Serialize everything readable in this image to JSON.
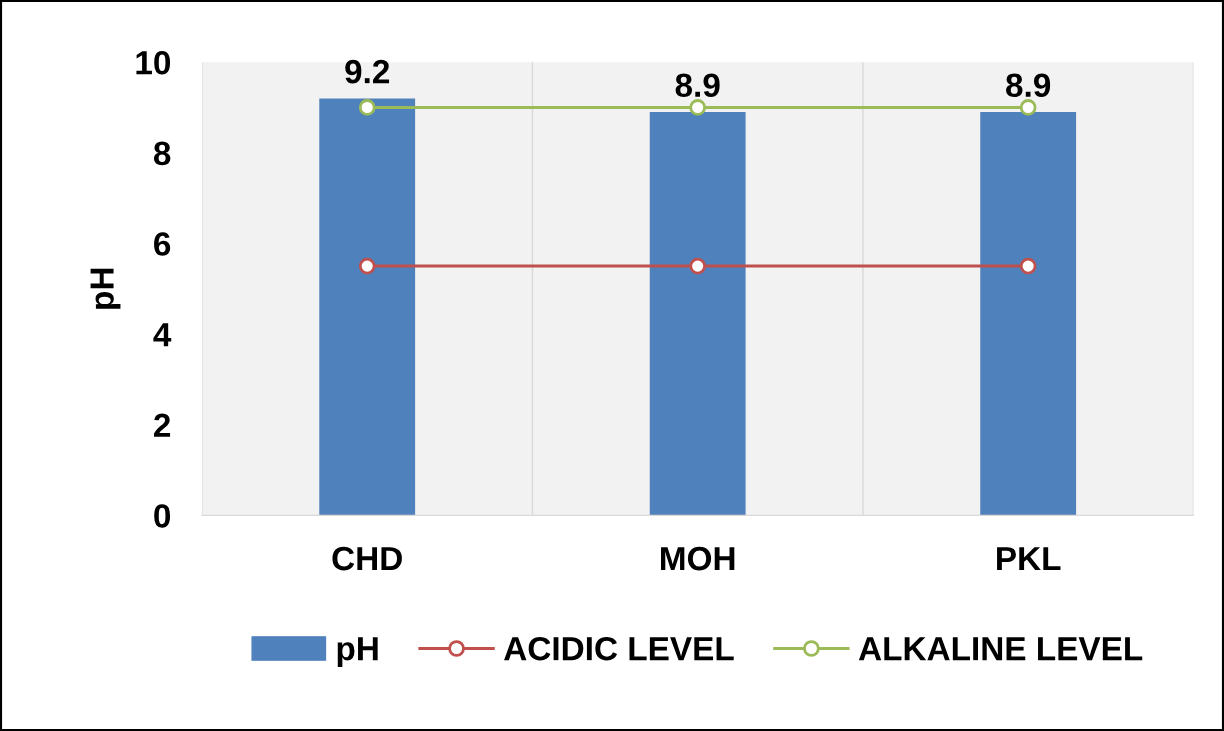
{
  "chart_data": {
    "type": "bar",
    "ylabel": "pH",
    "categories": [
      "CHD",
      "MOH",
      "PKL"
    ],
    "series": [
      {
        "name": "pH",
        "color": "#4f81bd",
        "values": [
          9.2,
          8.9,
          8.9
        ],
        "value_labels": [
          "9.2",
          "8.9",
          "8.9"
        ]
      },
      {
        "name": "ACIDIC LEVEL",
        "type": "line",
        "color": "#c0504d",
        "values": [
          5.5,
          5.5,
          5.5
        ],
        "marker": "circle"
      },
      {
        "name": "ALKALINE LEVEL",
        "type": "line",
        "color": "#9bbb59",
        "values": [
          9.0,
          9.0,
          9.0
        ],
        "marker": "circle"
      }
    ],
    "ylim": [
      0,
      10
    ],
    "yticks": [
      0,
      2,
      4,
      6,
      8,
      10
    ],
    "grid": "x",
    "legend": "bottom"
  }
}
